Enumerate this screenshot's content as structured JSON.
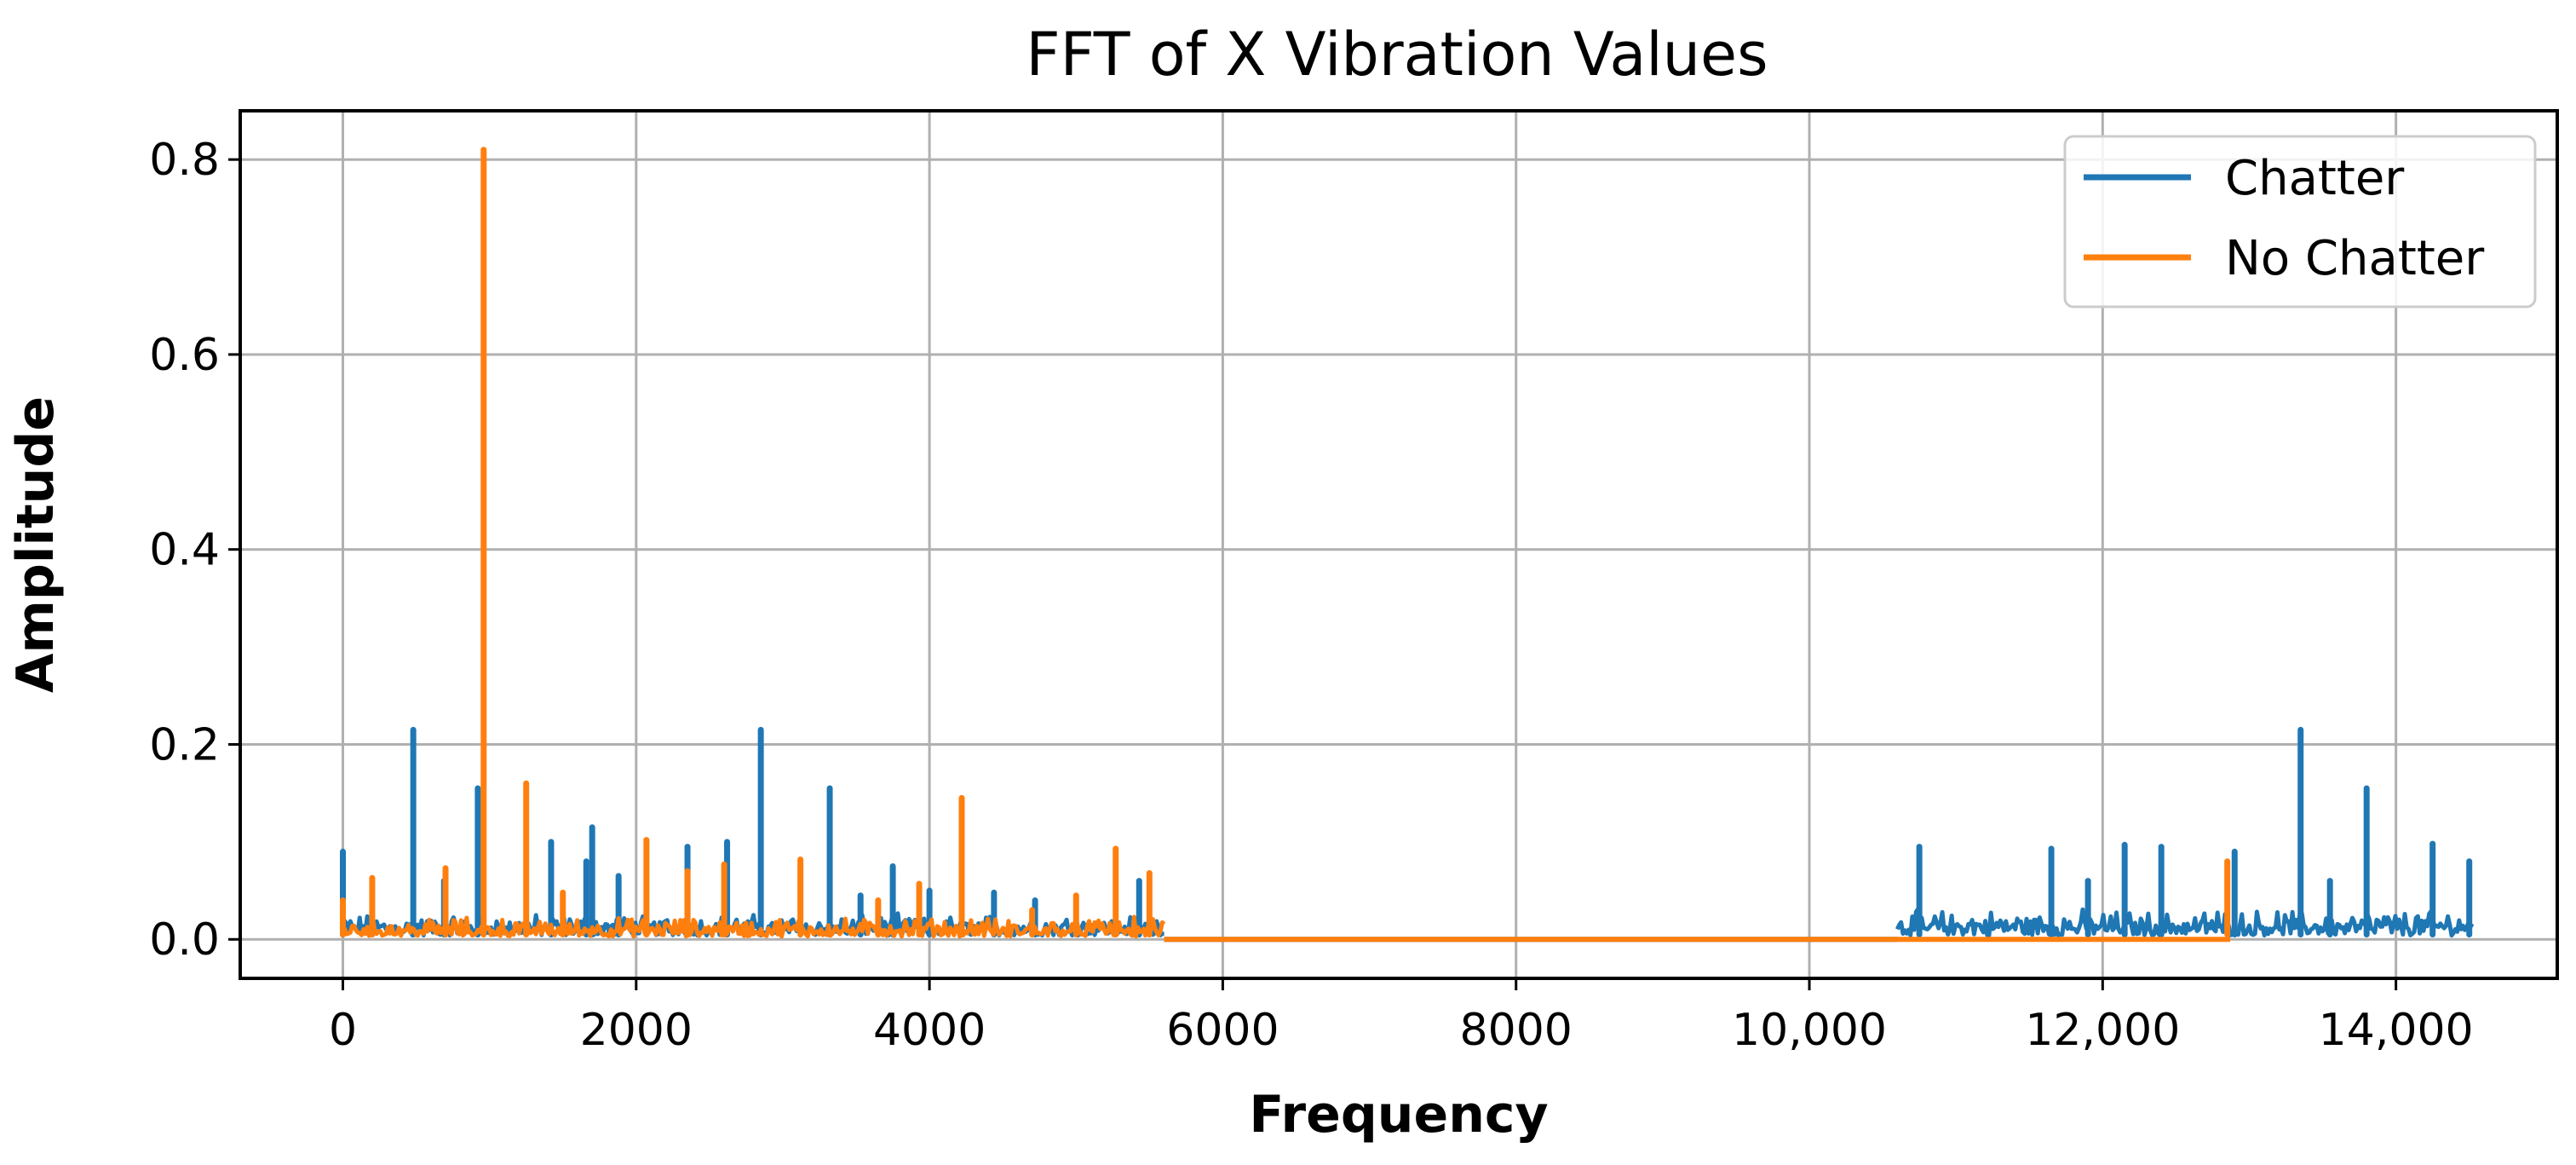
{
  "chart_data": {
    "type": "line",
    "title": "FFT of X Vibration Values",
    "xlabel": "Frequency",
    "ylabel": "Amplitude",
    "xlim": [
      -700,
      15100
    ],
    "ylim": [
      -0.04,
      0.85
    ],
    "grid": true,
    "legend_position": "top-right",
    "x_ticks": [
      0,
      2000,
      4000,
      6000,
      8000,
      10000,
      12000,
      14000
    ],
    "x_tick_labels": [
      "0",
      "2000",
      "4000",
      "6000",
      "8000",
      "10,000",
      "12,000",
      "14,000"
    ],
    "y_ticks": [
      0.0,
      0.2,
      0.4,
      0.6,
      0.8
    ],
    "y_tick_labels": [
      "0.0",
      "0.2",
      "0.4",
      "0.6",
      "0.8"
    ],
    "series": [
      {
        "name": "Chatter",
        "color": "#1f77b4",
        "segments": [
          {
            "x_start": 0,
            "x_end": 5600,
            "noise": 0.018,
            "baseline": 0.004
          },
          {
            "x_start": 10600,
            "x_end": 14520,
            "noise": 0.022,
            "baseline": 0.004
          }
        ],
        "flat_segment": {
          "x_start": 5600,
          "x_end": 10600,
          "value": 0.0
        },
        "peaks": [
          {
            "x": 0,
            "y": 0.09
          },
          {
            "x": 480,
            "y": 0.215
          },
          {
            "x": 690,
            "y": 0.06
          },
          {
            "x": 920,
            "y": 0.155
          },
          {
            "x": 1420,
            "y": 0.1
          },
          {
            "x": 1660,
            "y": 0.08
          },
          {
            "x": 1700,
            "y": 0.115
          },
          {
            "x": 1880,
            "y": 0.065
          },
          {
            "x": 2350,
            "y": 0.095
          },
          {
            "x": 2620,
            "y": 0.1
          },
          {
            "x": 2850,
            "y": 0.215
          },
          {
            "x": 3320,
            "y": 0.155
          },
          {
            "x": 3530,
            "y": 0.045
          },
          {
            "x": 3750,
            "y": 0.075
          },
          {
            "x": 4000,
            "y": 0.05
          },
          {
            "x": 4440,
            "y": 0.048
          },
          {
            "x": 4720,
            "y": 0.04
          },
          {
            "x": 5430,
            "y": 0.06
          },
          {
            "x": 10750,
            "y": 0.095
          },
          {
            "x": 11650,
            "y": 0.093
          },
          {
            "x": 11900,
            "y": 0.06
          },
          {
            "x": 12150,
            "y": 0.097
          },
          {
            "x": 12400,
            "y": 0.095
          },
          {
            "x": 12900,
            "y": 0.09
          },
          {
            "x": 13350,
            "y": 0.215
          },
          {
            "x": 13550,
            "y": 0.06
          },
          {
            "x": 13800,
            "y": 0.155
          },
          {
            "x": 14250,
            "y": 0.098
          },
          {
            "x": 14500,
            "y": 0.08
          }
        ]
      },
      {
        "name": "No Chatter",
        "color": "#ff7f0e",
        "segments": [
          {
            "x_start": 0,
            "x_end": 5600,
            "noise": 0.016,
            "baseline": 0.003
          }
        ],
        "flat_segment": {
          "x_start": 5600,
          "x_end": 12870,
          "value": 0.0
        },
        "peaks": [
          {
            "x": 0,
            "y": 0.04
          },
          {
            "x": 200,
            "y": 0.063
          },
          {
            "x": 700,
            "y": 0.073
          },
          {
            "x": 960,
            "y": 0.81
          },
          {
            "x": 1250,
            "y": 0.16
          },
          {
            "x": 1500,
            "y": 0.048
          },
          {
            "x": 2070,
            "y": 0.102
          },
          {
            "x": 2350,
            "y": 0.07
          },
          {
            "x": 2600,
            "y": 0.077
          },
          {
            "x": 3120,
            "y": 0.082
          },
          {
            "x": 3650,
            "y": 0.04
          },
          {
            "x": 3930,
            "y": 0.057
          },
          {
            "x": 4220,
            "y": 0.145
          },
          {
            "x": 4700,
            "y": 0.03
          },
          {
            "x": 5000,
            "y": 0.045
          },
          {
            "x": 5270,
            "y": 0.093
          },
          {
            "x": 5500,
            "y": 0.068
          },
          {
            "x": 12850,
            "y": 0.08
          }
        ]
      }
    ]
  }
}
